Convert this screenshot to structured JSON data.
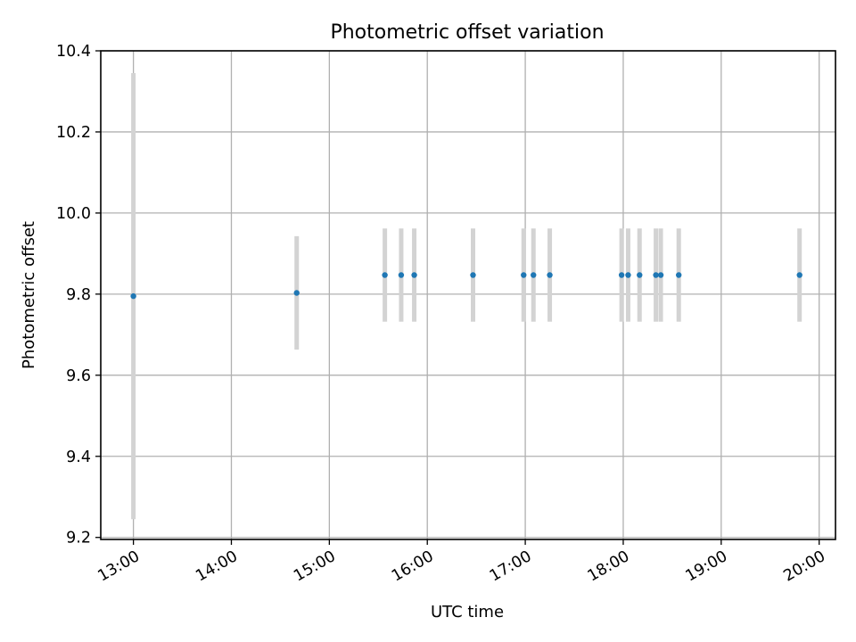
{
  "chart_data": {
    "type": "scatter",
    "title": "Photometric offset variation",
    "xlabel": "UTC time",
    "ylabel": "Photometric offset",
    "xlim": [
      "12:40",
      "20:10"
    ],
    "ylim": [
      9.195,
      10.4
    ],
    "x_ticks": [
      "13:00",
      "14:00",
      "15:00",
      "16:00",
      "17:00",
      "18:00",
      "19:00",
      "20:00"
    ],
    "y_ticks": [
      "9.2",
      "9.4",
      "9.6",
      "9.8",
      "10.0",
      "10.2",
      "10.4"
    ],
    "grid": true,
    "colors": {
      "marker": "#1f77b4",
      "errorbar": "#d3d3d3"
    },
    "points": [
      {
        "x": "13:00",
        "y": 9.795,
        "yerr": 0.55
      },
      {
        "x": "14:40",
        "y": 9.803,
        "yerr": 0.14
      },
      {
        "x": "15:34",
        "y": 9.847,
        "yerr": 0.115
      },
      {
        "x": "15:44",
        "y": 9.847,
        "yerr": 0.115
      },
      {
        "x": "15:52",
        "y": 9.847,
        "yerr": 0.115
      },
      {
        "x": "16:28",
        "y": 9.847,
        "yerr": 0.115
      },
      {
        "x": "16:59",
        "y": 9.847,
        "yerr": 0.115
      },
      {
        "x": "17:05",
        "y": 9.847,
        "yerr": 0.115
      },
      {
        "x": "17:15",
        "y": 9.847,
        "yerr": 0.115
      },
      {
        "x": "17:59",
        "y": 9.847,
        "yerr": 0.115
      },
      {
        "x": "18:03",
        "y": 9.847,
        "yerr": 0.115
      },
      {
        "x": "18:10",
        "y": 9.847,
        "yerr": 0.115
      },
      {
        "x": "18:20",
        "y": 9.847,
        "yerr": 0.115
      },
      {
        "x": "18:23",
        "y": 9.847,
        "yerr": 0.115
      },
      {
        "x": "18:34",
        "y": 9.847,
        "yerr": 0.115
      },
      {
        "x": "19:48",
        "y": 9.847,
        "yerr": 0.115
      }
    ]
  }
}
